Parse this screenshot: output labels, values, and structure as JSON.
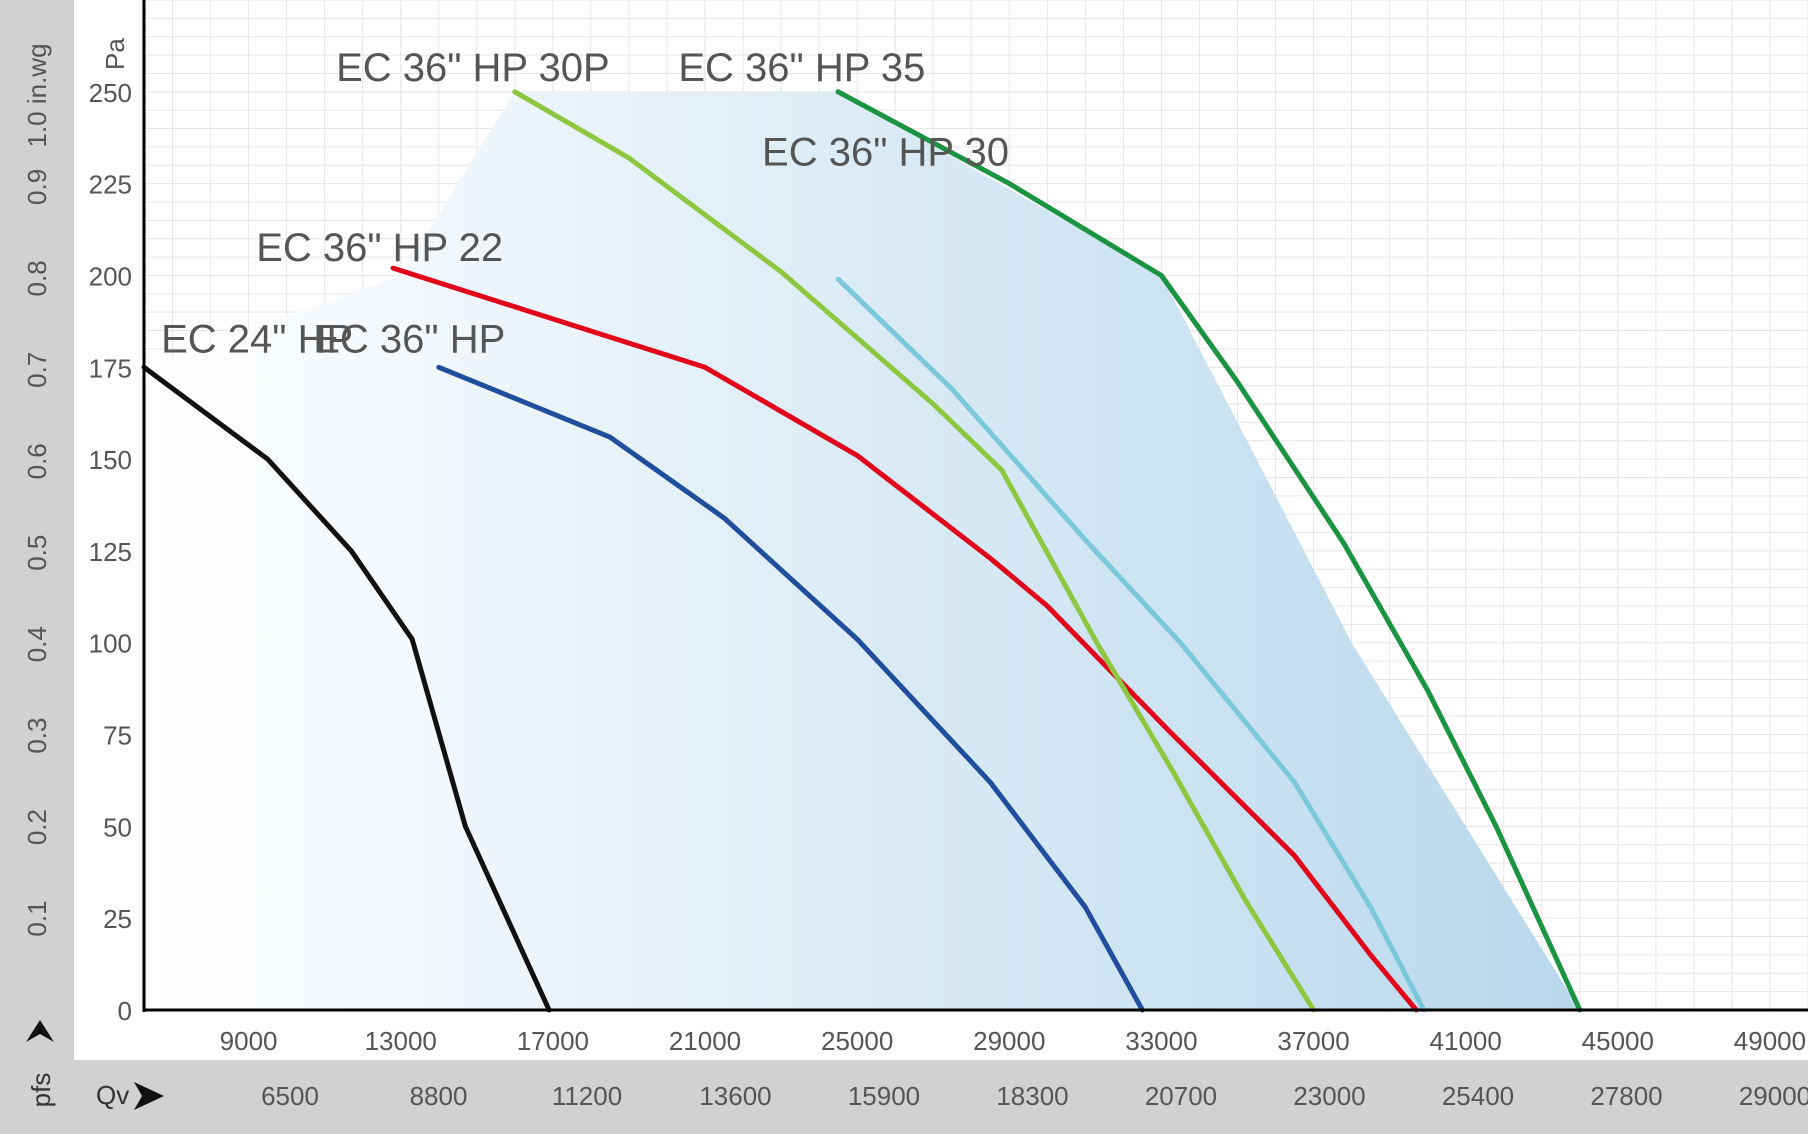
{
  "chart_data": {
    "type": "line",
    "units": {
      "y_left": "in.wg",
      "y_main": "Pa",
      "x_main_label": "Qv",
      "y_side_label": "pfs"
    },
    "y_pa_ticks": [
      "0",
      "25",
      "50",
      "75",
      "100",
      "125",
      "150",
      "175",
      "200",
      "225",
      "250"
    ],
    "y_inwg_ticks": [
      "0.1",
      "0.2",
      "0.3",
      "0.4",
      "0.5",
      "0.6",
      "0.7",
      "0.8",
      "0.9",
      "1.0 in.wg"
    ],
    "x_primary_ticks": [
      "9000",
      "13000",
      "17000",
      "21000",
      "25000",
      "29000",
      "33000",
      "37000",
      "41000",
      "45000",
      "49000"
    ],
    "x_secondary_ticks": [
      "6500",
      "8800",
      "11200",
      "13600",
      "15900",
      "18300",
      "20700",
      "23000",
      "25400",
      "27800",
      "29000"
    ],
    "xlim": [
      6250,
      50000
    ],
    "ylim": [
      0,
      275
    ],
    "gradient": {
      "start": "#ffffff",
      "end": "#b9d8ec"
    },
    "envelope": [
      [
        6250,
        175
      ],
      [
        13000,
        200
      ],
      [
        16000,
        250
      ],
      [
        24500,
        250
      ],
      [
        33000,
        200
      ],
      [
        35500,
        150
      ],
      [
        38000,
        100
      ],
      [
        41000,
        50
      ],
      [
        44000,
        0
      ],
      [
        6250,
        0
      ]
    ],
    "series": [
      {
        "name": "EC 24\" HP",
        "color": "#111111",
        "label_anchor": [
          6700,
          179
        ],
        "points": [
          [
            6250,
            175
          ],
          [
            9500,
            150
          ],
          [
            11700,
            125
          ],
          [
            13300,
            101
          ],
          [
            14700,
            50
          ],
          [
            16900,
            0
          ]
        ]
      },
      {
        "name": "EC 36\" HP",
        "color": "#1f4e9c",
        "label_anchor": [
          10700,
          179
        ],
        "points": [
          [
            14000,
            175
          ],
          [
            18500,
            156
          ],
          [
            21500,
            134
          ],
          [
            25000,
            101
          ],
          [
            28500,
            62
          ],
          [
            31000,
            28
          ],
          [
            32500,
            0
          ]
        ]
      },
      {
        "name": "EC 36\" HP 22",
        "color": "#e2061b",
        "label_anchor": [
          9200,
          204
        ],
        "points": [
          [
            12800,
            202
          ],
          [
            21000,
            175
          ],
          [
            25000,
            151
          ],
          [
            28500,
            123
          ],
          [
            30000,
            110
          ],
          [
            33200,
            76
          ],
          [
            36500,
            42
          ],
          [
            38500,
            15
          ],
          [
            39700,
            0
          ]
        ]
      },
      {
        "name": "EC 36\" HP 30P",
        "color": "#8dc63f",
        "label_anchor": [
          11300,
          253
        ],
        "points": [
          [
            16000,
            250
          ],
          [
            19000,
            232
          ],
          [
            23000,
            201
          ],
          [
            27000,
            165
          ],
          [
            28800,
            147
          ],
          [
            31300,
            100
          ],
          [
            33300,
            65
          ],
          [
            35200,
            30
          ],
          [
            37000,
            0
          ]
        ]
      },
      {
        "name": "EC 36\" HP 30",
        "color": "#7ac8dc",
        "label_anchor": [
          22500,
          230
        ],
        "points": [
          [
            24500,
            199
          ],
          [
            27500,
            169
          ],
          [
            31000,
            128
          ],
          [
            33500,
            100
          ],
          [
            36500,
            62
          ],
          [
            38500,
            28
          ],
          [
            39900,
            0
          ]
        ]
      },
      {
        "name": "EC 36\" HP 35",
        "color": "#1a9440",
        "label_anchor": [
          20300,
          253
        ],
        "points": [
          [
            24500,
            250
          ],
          [
            29000,
            225
          ],
          [
            33000,
            200
          ],
          [
            35000,
            171
          ],
          [
            37800,
            127
          ],
          [
            40000,
            87
          ],
          [
            41800,
            50
          ],
          [
            44000,
            0
          ]
        ]
      }
    ]
  }
}
